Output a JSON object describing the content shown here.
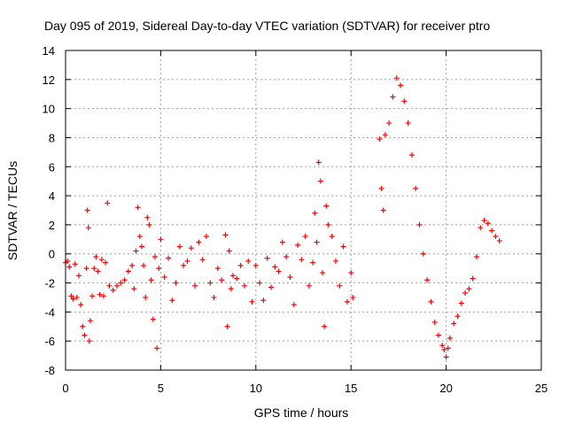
{
  "chart_data": {
    "type": "scatter",
    "title": "Day 095 of 2019, Sidereal Day-to-day VTEC variation (SDTVAR) for receiver ptro",
    "xlabel": "GPS time / hours",
    "ylabel": "SDTVAR / TECUs",
    "xlim": [
      0,
      25
    ],
    "ylim": [
      -8,
      14
    ],
    "xticks": [
      0,
      5,
      10,
      15,
      20,
      25
    ],
    "yticks": [
      -8,
      -6,
      -4,
      -2,
      0,
      2,
      4,
      6,
      8,
      10,
      12,
      14
    ],
    "grid": true,
    "marker": "+",
    "series_color": "#ff0000",
    "series": [
      {
        "name": "SDTVAR",
        "points": [
          [
            0.0,
            -0.6
          ],
          [
            0.1,
            -0.5
          ],
          [
            0.2,
            -0.9
          ],
          [
            0.3,
            -2.9
          ],
          [
            0.4,
            -3.1
          ],
          [
            0.5,
            -0.7
          ],
          [
            0.6,
            -3.0
          ],
          [
            0.7,
            -1.5
          ],
          [
            0.8,
            -3.5
          ],
          [
            0.9,
            -5.0
          ],
          [
            1.0,
            -5.6
          ],
          [
            1.1,
            -1.0
          ],
          [
            1.15,
            3.0
          ],
          [
            1.2,
            1.8
          ],
          [
            1.25,
            -6.0
          ],
          [
            1.3,
            -4.6
          ],
          [
            1.4,
            -2.9
          ],
          [
            1.5,
            -1.0
          ],
          [
            1.6,
            -0.2
          ],
          [
            1.7,
            -1.2
          ],
          [
            1.8,
            -2.8
          ],
          [
            1.9,
            -0.4
          ],
          [
            2.0,
            -2.9
          ],
          [
            2.1,
            -0.6
          ],
          [
            2.2,
            3.5
          ],
          [
            2.3,
            -2.2
          ],
          [
            2.5,
            -2.5
          ],
          [
            2.7,
            -2.2
          ],
          [
            2.9,
            -2.0
          ],
          [
            3.1,
            -1.8
          ],
          [
            3.3,
            -1.2
          ],
          [
            3.5,
            -0.8
          ],
          [
            3.6,
            -2.4
          ],
          [
            3.7,
            0.2
          ],
          [
            3.8,
            3.2
          ],
          [
            3.9,
            1.2
          ],
          [
            4.0,
            0.5
          ],
          [
            4.1,
            -0.8
          ],
          [
            4.2,
            -3.0
          ],
          [
            4.3,
            2.5
          ],
          [
            4.4,
            2.0
          ],
          [
            4.5,
            -1.8
          ],
          [
            4.6,
            -4.5
          ],
          [
            4.7,
            -0.2
          ],
          [
            4.8,
            -6.5
          ],
          [
            4.9,
            -1.0
          ],
          [
            5.0,
            1.0
          ],
          [
            5.2,
            -1.6
          ],
          [
            5.4,
            -0.3
          ],
          [
            5.6,
            -3.2
          ],
          [
            5.8,
            -2.0
          ],
          [
            6.0,
            0.5
          ],
          [
            6.2,
            -0.8
          ],
          [
            6.4,
            -0.5
          ],
          [
            6.6,
            0.4
          ],
          [
            6.8,
            -2.2
          ],
          [
            7.0,
            0.8
          ],
          [
            7.2,
            -0.4
          ],
          [
            7.4,
            1.2
          ],
          [
            7.6,
            -2.0
          ],
          [
            7.8,
            -3.0
          ],
          [
            8.0,
            -1.0
          ],
          [
            8.2,
            -1.8
          ],
          [
            8.4,
            1.3
          ],
          [
            8.5,
            -5.0
          ],
          [
            8.6,
            0.2
          ],
          [
            8.7,
            -2.4
          ],
          [
            8.8,
            -1.5
          ],
          [
            9.0,
            -1.7
          ],
          [
            9.2,
            -0.8
          ],
          [
            9.4,
            -2.2
          ],
          [
            9.6,
            -0.5
          ],
          [
            9.8,
            -3.3
          ],
          [
            10.0,
            -0.8
          ],
          [
            10.2,
            -2.0
          ],
          [
            10.4,
            -3.2
          ],
          [
            10.6,
            -0.3
          ],
          [
            10.8,
            -2.3
          ],
          [
            11.0,
            -0.9
          ],
          [
            11.2,
            -1.2
          ],
          [
            11.4,
            0.8
          ],
          [
            11.6,
            -0.2
          ],
          [
            11.8,
            -1.6
          ],
          [
            12.0,
            -3.5
          ],
          [
            12.2,
            0.6
          ],
          [
            12.4,
            -0.4
          ],
          [
            12.6,
            1.2
          ],
          [
            12.8,
            -2.2
          ],
          [
            13.0,
            -0.6
          ],
          [
            13.1,
            2.8
          ],
          [
            13.2,
            0.8
          ],
          [
            13.3,
            6.3
          ],
          [
            13.4,
            5.0
          ],
          [
            13.5,
            -1.3
          ],
          [
            13.6,
            -5.0
          ],
          [
            13.7,
            3.3
          ],
          [
            13.8,
            2.0
          ],
          [
            14.0,
            1.2
          ],
          [
            14.2,
            -0.5
          ],
          [
            14.4,
            -2.2
          ],
          [
            14.6,
            0.5
          ],
          [
            14.8,
            -3.3
          ],
          [
            15.0,
            -1.3
          ],
          [
            15.1,
            -3.0
          ],
          [
            16.5,
            7.9
          ],
          [
            16.6,
            4.5
          ],
          [
            16.7,
            3.0
          ],
          [
            16.8,
            8.2
          ],
          [
            17.0,
            9.0
          ],
          [
            17.2,
            10.8
          ],
          [
            17.4,
            12.1
          ],
          [
            17.6,
            11.6
          ],
          [
            17.8,
            10.5
          ],
          [
            18.0,
            9.0
          ],
          [
            18.2,
            6.8
          ],
          [
            18.4,
            4.5
          ],
          [
            18.6,
            2.0
          ],
          [
            18.8,
            0.0
          ],
          [
            19.0,
            -1.8
          ],
          [
            19.2,
            -3.3
          ],
          [
            19.4,
            -4.7
          ],
          [
            19.6,
            -5.6
          ],
          [
            19.8,
            -6.3
          ],
          [
            19.9,
            -6.6
          ],
          [
            20.0,
            -7.1
          ],
          [
            20.1,
            -6.5
          ],
          [
            20.2,
            -5.8
          ],
          [
            20.4,
            -4.8
          ],
          [
            20.6,
            -4.3
          ],
          [
            20.8,
            -3.4
          ],
          [
            21.0,
            -2.7
          ],
          [
            21.2,
            -2.4
          ],
          [
            21.4,
            -1.7
          ],
          [
            21.6,
            -0.2
          ],
          [
            21.8,
            1.8
          ],
          [
            22.0,
            2.3
          ],
          [
            22.2,
            2.1
          ],
          [
            22.4,
            1.6
          ],
          [
            22.6,
            1.2
          ],
          [
            22.8,
            0.9
          ]
        ]
      }
    ]
  }
}
